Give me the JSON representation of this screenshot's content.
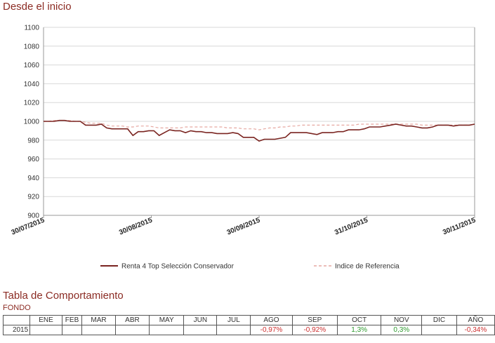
{
  "header": {
    "title": "Desde el inicio"
  },
  "chart_data": {
    "type": "line",
    "ylim": [
      900,
      1100
    ],
    "yticks": [
      "1100",
      "1080",
      "1060",
      "1040",
      "1020",
      "1000",
      "980",
      "960",
      "940",
      "920",
      "900"
    ],
    "xticks": [
      "30/07/2015",
      "30/08/2015",
      "30/09/2015",
      "31/10/2015",
      "30/11/2015"
    ],
    "grid": true,
    "legend_position": "bottom",
    "series": [
      {
        "name": "Renta 4 Top Selección Conservador",
        "color": "#7a2420",
        "style": "solid",
        "values": [
          1000,
          1000,
          1000,
          1001,
          1001,
          1000,
          1000,
          1000,
          996,
          996,
          996,
          997,
          993,
          992,
          992,
          992,
          992,
          985,
          989,
          989,
          990,
          990,
          985,
          988,
          991,
          990,
          990,
          988,
          990,
          989,
          989,
          988,
          988,
          987,
          987,
          987,
          988,
          987,
          983,
          983,
          983,
          979,
          981,
          981,
          981,
          982,
          983,
          988,
          988,
          988,
          988,
          987,
          986,
          988,
          988,
          988,
          989,
          989,
          991,
          991,
          991,
          992,
          994,
          994,
          994,
          995,
          996,
          997,
          996,
          995,
          995,
          994,
          993,
          993,
          994,
          996,
          996,
          996,
          995,
          996,
          996,
          996,
          997
        ]
      },
      {
        "name": "Indice de Referencia",
        "color": "#e6a7a0",
        "style": "dashed",
        "values": [
          1000,
          1000,
          1001,
          1001,
          1001,
          1001,
          1000,
          1000,
          999,
          998,
          998,
          998,
          996,
          995,
          995,
          995,
          994,
          994,
          995,
          995,
          995,
          994,
          993,
          993,
          993,
          993,
          993,
          994,
          994,
          994,
          994,
          994,
          994,
          994,
          994,
          993,
          993,
          993,
          992,
          992,
          992,
          991,
          992,
          993,
          993,
          994,
          994,
          995,
          995,
          996,
          996,
          996,
          996,
          996,
          996,
          996,
          996,
          996,
          996,
          996,
          997,
          997,
          997,
          997,
          997,
          997,
          997,
          997,
          997,
          997,
          997,
          997,
          996,
          996,
          996,
          996,
          996,
          996,
          996,
          996,
          996,
          996,
          997
        ]
      }
    ]
  },
  "table": {
    "title": "Tabla de Comportamiento",
    "subtitle": "FONDO",
    "headers": [
      "ENE",
      "FEB",
      "MAR",
      "ABR",
      "MAY",
      "JUN",
      "JUL",
      "AGO",
      "SEP",
      "OCT",
      "NOV",
      "DIC",
      "AÑO"
    ],
    "row_label": "2015",
    "values": [
      "",
      "",
      "",
      "",
      "",
      "",
      "",
      "-0,97%",
      "-0,92%",
      "1,3%",
      "0,3%",
      "",
      "-0,34%"
    ],
    "colors": {
      "negative": "#cc2e2e",
      "positive": "#2e9a2e"
    }
  }
}
